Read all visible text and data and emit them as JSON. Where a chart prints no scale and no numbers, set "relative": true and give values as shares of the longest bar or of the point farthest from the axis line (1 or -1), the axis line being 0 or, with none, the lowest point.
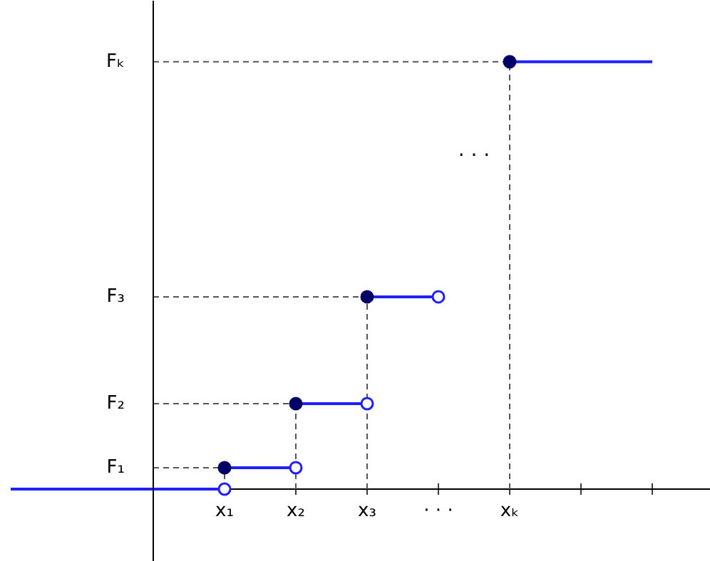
{
  "chart_data": {
    "type": "line",
    "relative": true,
    "categories": [
      null,
      null,
      null,
      "x₁",
      "x₂",
      "x₃",
      "· · ·",
      "xₖ",
      null,
      null
    ],
    "series": [
      {
        "color": "#2020ff",
        "values": [
          0,
          0,
          0,
          0,
          null,
          null,
          null,
          null,
          null,
          null
        ]
      },
      {
        "color": "#2020ff",
        "values": [
          null,
          null,
          null,
          0.05,
          0.05,
          null,
          null,
          null,
          null,
          null
        ]
      },
      {
        "color": "#2020ff",
        "values": [
          null,
          null,
          null,
          null,
          0.2,
          0.2,
          null,
          null,
          null,
          null
        ]
      },
      {
        "color": "#2020ff",
        "values": [
          null,
          null,
          null,
          null,
          null,
          0.45,
          0.45,
          null,
          null,
          null
        ]
      },
      {
        "color": "#2020ff",
        "values": [
          null,
          null,
          null,
          null,
          null,
          null,
          null,
          1,
          1,
          1
        ]
      },
      {
        "color": "#555555",
        "line_style": "dashed",
        "values": [
          null,
          null,
          0.05,
          0.05,
          null,
          null,
          null,
          null,
          null,
          null
        ]
      },
      {
        "color": "#555555",
        "line_style": "dashed",
        "values": [
          null,
          null,
          0.2,
          0.2,
          0.2,
          null,
          null,
          null,
          null,
          null
        ]
      },
      {
        "color": "#555555",
        "line_style": "dashed",
        "values": [
          null,
          null,
          0.45,
          0.45,
          0.45,
          0.45,
          null,
          null,
          null,
          null
        ]
      },
      {
        "color": "#555555",
        "line_style": "dashed",
        "values": [
          null,
          null,
          1,
          1,
          1,
          1,
          1,
          1,
          null,
          null
        ]
      },
      {
        "color": "#555555",
        "line_style": "dashed",
        "x": [
          "x₁",
          "x₁"
        ],
        "values": [
          0,
          0.05
        ]
      },
      {
        "color": "#555555",
        "line_style": "dashed",
        "x": [
          "x₂",
          "x₂"
        ],
        "values": [
          0,
          0.2
        ]
      },
      {
        "color": "#555555",
        "line_style": "dashed",
        "x": [
          "x₃",
          "x₃"
        ],
        "values": [
          0,
          0.45
        ]
      },
      {
        "color": "#555555",
        "line_style": "dashed",
        "x": [
          "xₖ",
          "xₖ"
        ],
        "values": [
          0,
          1
        ]
      },
      {
        "type": "scatter",
        "color": "#000066",
        "marker": "circle",
        "values": [
          null,
          null,
          null,
          0.05,
          0.2,
          0.45,
          null,
          1,
          null,
          null
        ]
      },
      {
        "type": "scatter",
        "color": "#2020ff",
        "marker": "circle",
        "values": [
          null,
          null,
          null,
          0,
          0.05,
          0.2,
          0.45,
          null,
          null,
          null
        ]
      }
    ],
    "annotations": [
      "F₁",
      "F₂",
      "F₃",
      "Fₖ",
      "· · ·"
    ]
  }
}
